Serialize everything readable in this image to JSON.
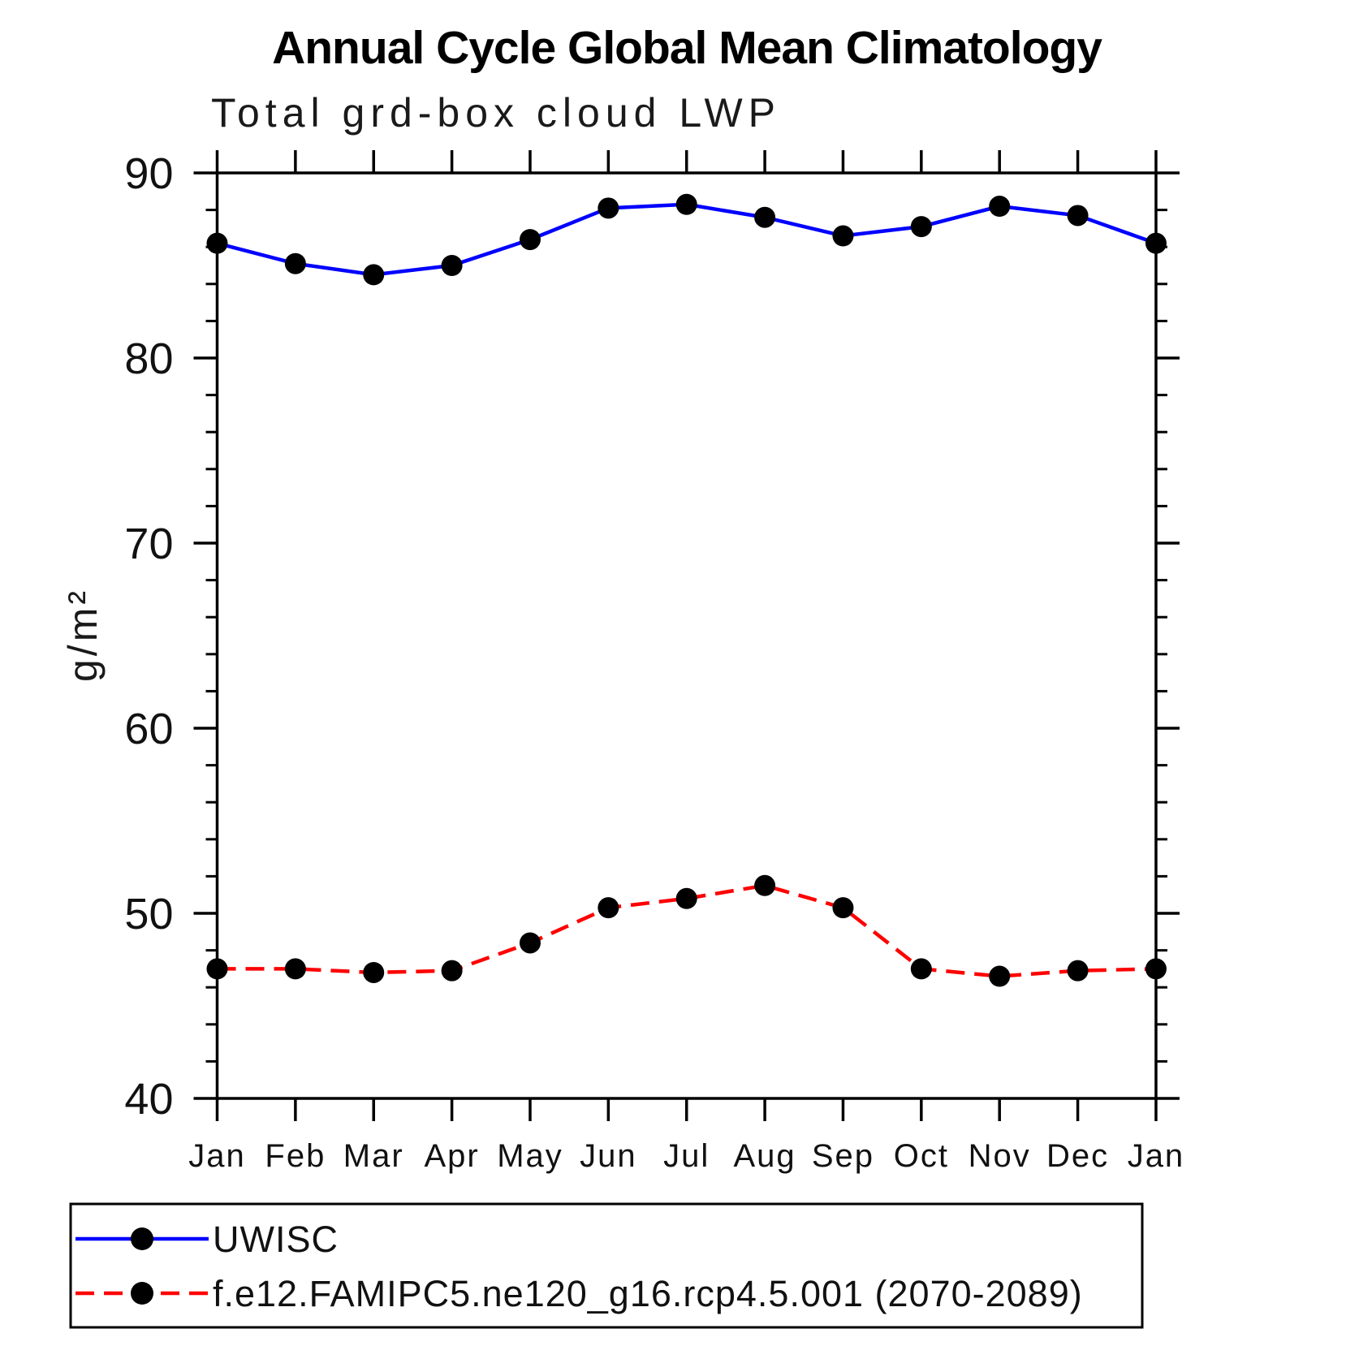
{
  "chart_data": {
    "type": "line",
    "title": "Annual Cycle Global Mean Climatology",
    "subtitle": "Total grd-box cloud LWP",
    "xlabel": "",
    "ylabel": "g/m²",
    "categories": [
      "Jan",
      "Feb",
      "Mar",
      "Apr",
      "May",
      "Jun",
      "Jul",
      "Aug",
      "Sep",
      "Oct",
      "Nov",
      "Dec",
      "Jan"
    ],
    "ylim": [
      40,
      90
    ],
    "ytick_major": [
      40,
      50,
      60,
      70,
      80,
      90
    ],
    "ytick_minor_step": 2,
    "grid": false,
    "legend_position": "bottom-left",
    "marker": "circle",
    "marker_color": "#000000",
    "axis_color": "#000000",
    "series": [
      {
        "name": "UWISC",
        "color": "#0000ff",
        "dash": "solid",
        "values": [
          86.2,
          85.1,
          84.5,
          85.0,
          86.4,
          88.1,
          88.3,
          87.6,
          86.6,
          87.1,
          88.2,
          87.7,
          86.2
        ]
      },
      {
        "name": "f.e12.FAMIPC5.ne120_g16.rcp4.5.001 (2070-2089)",
        "color": "#ff0000",
        "dash": "dashed",
        "values": [
          47.0,
          47.0,
          46.8,
          46.9,
          48.4,
          50.3,
          50.8,
          51.5,
          50.3,
          47.0,
          46.6,
          46.9,
          47.0
        ]
      }
    ]
  }
}
